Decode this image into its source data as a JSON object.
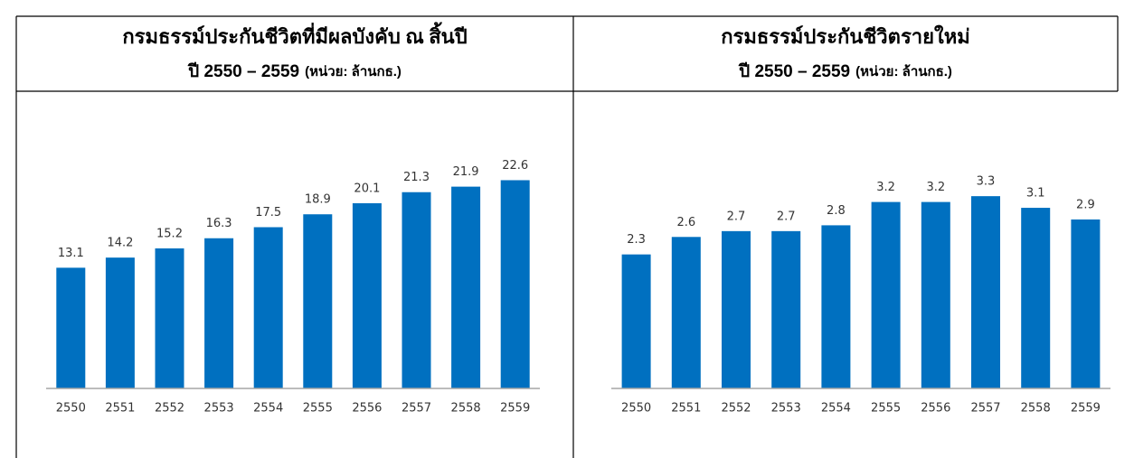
{
  "chart_data": [
    {
      "type": "bar",
      "title": "กรมธรรม์ประกันชีวิตที่มีผลบังคับ ณ สิ้นปี",
      "subtitle": "ปี 2550 – 2559",
      "unit": "(หน่วย: ล้านกธ.)",
      "categories": [
        "2550",
        "2551",
        "2552",
        "2553",
        "2554",
        "2555",
        "2556",
        "2557",
        "2558",
        "2559"
      ],
      "values": [
        13.1,
        14.2,
        15.2,
        16.3,
        17.5,
        18.9,
        20.1,
        21.3,
        21.9,
        22.6
      ],
      "color": "#0070c0",
      "ylim": [
        0,
        25
      ]
    },
    {
      "type": "bar",
      "title": "กรมธรรม์ประกันชีวิตรายใหม่",
      "subtitle": "ปี 2550 – 2559",
      "unit": "(หน่วย: ล้านกธ.)",
      "categories": [
        "2550",
        "2551",
        "2552",
        "2553",
        "2554",
        "2555",
        "2556",
        "2557",
        "2558",
        "2559"
      ],
      "values": [
        2.3,
        2.6,
        2.7,
        2.7,
        2.8,
        3.2,
        3.2,
        3.3,
        3.1,
        2.9
      ],
      "color": "#0070c0",
      "ylim": [
        0,
        4
      ]
    }
  ]
}
